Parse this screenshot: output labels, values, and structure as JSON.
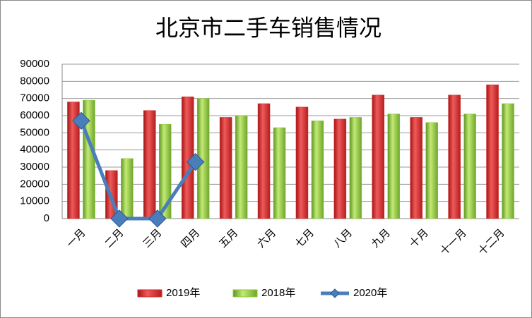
{
  "chart_data": {
    "type": "bar",
    "title": "北京市二手车销售情况",
    "categories": [
      "一月",
      "二月",
      "三月",
      "四月",
      "五月",
      "六月",
      "七月",
      "八月",
      "九月",
      "十月",
      "十一月",
      "十二月"
    ],
    "series": [
      {
        "name": "2019年",
        "color": "#d42a2a",
        "type": "bar",
        "values": [
          68000,
          28000,
          63000,
          71000,
          59000,
          67000,
          65000,
          58000,
          72000,
          59000,
          72000,
          78000
        ]
      },
      {
        "name": "2018年",
        "color": "#8fc63a",
        "type": "bar",
        "values": [
          69000,
          35000,
          55000,
          70000,
          60000,
          53000,
          57000,
          59000,
          61000,
          56000,
          61000,
          67000
        ]
      },
      {
        "name": "2020年",
        "color": "#4a7ebb",
        "type": "line",
        "values": [
          57000,
          0,
          0,
          33000,
          null,
          null,
          null,
          null,
          null,
          null,
          null,
          null
        ]
      }
    ],
    "ylim": [
      0,
      90000
    ],
    "yticks": [
      0,
      10000,
      20000,
      30000,
      40000,
      50000,
      60000,
      70000,
      80000,
      90000
    ],
    "grid": true,
    "legend": "bottom"
  }
}
